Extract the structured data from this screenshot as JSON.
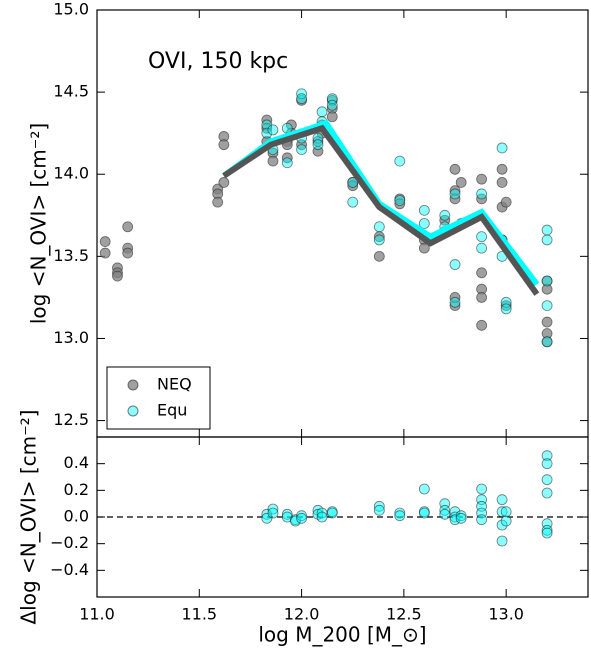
{
  "chart_data": [
    {
      "type": "scatter",
      "annotation": "OVI, 150 kpc",
      "ylabel": "log <N_OVI> [cm⁻²]",
      "xlim": [
        11.0,
        13.4
      ],
      "ylim": [
        12.4,
        15.0
      ],
      "yticks": [
        12.5,
        {
          "value": 13,
          "label": "13.0"
        },
        13.5,
        {
          "value": 14,
          "label": "14.0"
        },
        14.5,
        {
          "value": 15,
          "label": "15.0"
        }
      ],
      "legend": "lower left",
      "series": [
        {
          "name": "NEQ",
          "color": "#808080",
          "mode": "markers",
          "x": [
            11.04,
            11.04,
            11.1,
            11.1,
            11.1,
            11.15,
            11.15,
            11.15,
            11.59,
            11.59,
            11.59,
            11.62,
            11.62,
            11.62,
            11.83,
            11.83,
            11.83,
            11.86,
            11.86,
            11.93,
            11.93,
            11.93,
            11.95,
            11.95,
            12.0,
            12.0,
            12.08,
            12.08,
            12.1,
            12.1,
            12.15,
            12.15,
            12.15,
            12.25,
            12.25,
            12.38,
            12.38,
            12.48,
            12.48,
            12.6,
            12.6,
            12.7,
            12.7,
            12.75,
            12.75,
            12.75,
            12.75,
            12.75,
            12.78,
            12.78,
            12.88,
            12.88,
            12.88,
            12.88,
            12.88,
            12.88,
            12.98,
            12.98,
            12.98,
            12.98,
            13.0,
            13.0,
            13.2,
            13.2,
            13.2,
            13.2,
            13.2
          ],
          "values": [
            13.59,
            13.52,
            13.43,
            13.4,
            13.38,
            13.68,
            13.55,
            13.52,
            13.91,
            13.88,
            13.83,
            14.23,
            14.18,
            13.95,
            14.33,
            14.28,
            14.2,
            14.13,
            14.08,
            14.2,
            14.18,
            14.1,
            14.3,
            14.25,
            14.45,
            14.18,
            14.2,
            14.14,
            14.3,
            14.25,
            14.45,
            14.4,
            14.35,
            13.95,
            13.93,
            13.62,
            13.5,
            13.85,
            13.82,
            13.6,
            13.55,
            13.72,
            13.65,
            14.03,
            13.9,
            13.85,
            13.2,
            13.25,
            13.95,
            13.7,
            13.97,
            13.85,
            13.4,
            13.3,
            13.25,
            13.08,
            14.03,
            13.95,
            13.8,
            13.6,
            13.83,
            13.2,
            13.35,
            13.3,
            13.1,
            13.03,
            12.98
          ]
        },
        {
          "name": "Equ",
          "color": "#00ffff",
          "mode": "markers",
          "x": [
            11.83,
            11.83,
            11.86,
            11.86,
            11.93,
            11.93,
            12.0,
            12.0,
            12.0,
            12.0,
            12.08,
            12.08,
            12.1,
            12.1,
            12.15,
            12.15,
            12.25,
            12.25,
            12.38,
            12.38,
            12.48,
            12.48,
            12.6,
            12.6,
            12.7,
            12.7,
            12.75,
            12.75,
            12.75,
            12.88,
            12.88,
            12.88,
            12.98,
            12.98,
            12.98,
            13.0,
            13.0,
            13.2,
            13.2,
            13.2,
            13.2,
            13.2
          ],
          "values": [
            14.3,
            14.25,
            14.27,
            14.15,
            14.28,
            14.07,
            14.49,
            14.46,
            14.22,
            14.15,
            14.22,
            14.18,
            14.38,
            14.32,
            14.46,
            14.42,
            13.95,
            13.83,
            13.68,
            13.6,
            14.08,
            13.84,
            13.78,
            13.7,
            13.75,
            13.68,
            13.88,
            13.45,
            13.22,
            13.88,
            13.62,
            13.55,
            14.16,
            13.6,
            13.5,
            13.22,
            13.18,
            13.66,
            13.6,
            13.35,
            13.2,
            12.98
          ]
        },
        {
          "color": "#00ffff",
          "mode": "line",
          "x": [
            11.62,
            11.85,
            12.12,
            12.38,
            12.63,
            12.88,
            13.15
          ],
          "values": [
            13.99,
            14.2,
            14.31,
            13.82,
            13.62,
            13.77,
            13.33
          ]
        },
        {
          "color": "#555555",
          "mode": "line",
          "x": [
            11.62,
            11.85,
            12.1,
            12.38,
            12.63,
            12.88,
            13.15
          ],
          "values": [
            13.99,
            14.18,
            14.28,
            13.8,
            13.58,
            13.74,
            13.27
          ]
        }
      ]
    },
    {
      "type": "scatter",
      "ylabel": "Δlog <N_OVI> [cm⁻²]",
      "xlabel": "log M_200 [M_⊙]",
      "xlim": [
        11.0,
        13.4
      ],
      "ylim": [
        -0.6,
        0.6
      ],
      "xticks": [
        {
          "value": 11,
          "label": "11.0"
        },
        11.5,
        {
          "value": 12,
          "label": "12.0"
        },
        12.5,
        {
          "value": 13,
          "label": "13.0"
        }
      ],
      "yticks": [
        {
          "value": -0.4,
          "label": "−0.4"
        },
        {
          "value": -0.2,
          "label": "−0.2"
        },
        {
          "value": 0,
          "label": "0.0"
        },
        0.2,
        0.4
      ],
      "hline": 0,
      "series": [
        {
          "color": "#00ffff",
          "mode": "markers",
          "x": [
            11.83,
            11.83,
            11.86,
            11.86,
            11.93,
            11.93,
            11.97,
            11.97,
            12.0,
            12.0,
            12.08,
            12.08,
            12.1,
            12.1,
            12.15,
            12.15,
            12.38,
            12.38,
            12.48,
            12.48,
            12.6,
            12.6,
            12.6,
            12.7,
            12.7,
            12.7,
            12.75,
            12.75,
            12.75,
            12.78,
            12.78,
            12.88,
            12.88,
            12.88,
            12.88,
            12.88,
            12.98,
            12.98,
            12.98,
            12.98,
            13.0,
            13.0,
            13.2,
            13.2,
            13.2,
            13.2,
            13.2,
            13.2,
            13.2
          ],
          "values": [
            0.02,
            -0.01,
            0.06,
            0.03,
            0.02,
            0.0,
            -0.02,
            -0.03,
            0.01,
            -0.01,
            0.05,
            0.02,
            0.03,
            0.0,
            0.04,
            0.03,
            0.08,
            0.05,
            0.03,
            0.01,
            0.21,
            0.04,
            0.03,
            0.1,
            0.05,
            0.02,
            0.04,
            0.0,
            -0.02,
            0.01,
            -0.01,
            0.21,
            0.13,
            0.08,
            0.03,
            -0.02,
            0.13,
            0.04,
            -0.06,
            -0.18,
            0.04,
            -0.03,
            0.46,
            0.4,
            0.28,
            0.18,
            -0.05,
            -0.1,
            -0.12
          ]
        }
      ]
    }
  ]
}
